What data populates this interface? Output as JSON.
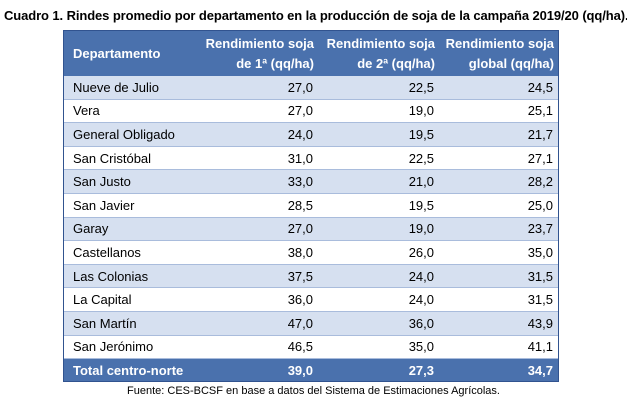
{
  "caption": "Cuadro 1. Rindes promedio por departamento en la producción de soja de la campaña 2019/20 (qq/ha).",
  "table": {
    "headers": [
      "Departamento",
      "Rendimiento soja de 1ª (qq/ha)",
      "Rendimiento soja de 2ª (qq/ha)",
      "Rendimiento soja global (qq/ha)"
    ],
    "headers_split": [
      [
        "Departamento"
      ],
      [
        "Rendimiento soja",
        "de 1ª (qq/ha)"
      ],
      [
        "Rendimiento soja",
        "de 2ª (qq/ha)"
      ],
      [
        "Rendimiento soja",
        "global (qq/ha)"
      ]
    ],
    "rows": [
      [
        "Nueve de Julio",
        "27,0",
        "22,5",
        "24,5"
      ],
      [
        "Vera",
        "27,0",
        "19,0",
        "25,1"
      ],
      [
        "General Obligado",
        "24,0",
        "19,5",
        "21,7"
      ],
      [
        "San Cristóbal",
        "31,0",
        "22,5",
        "27,1"
      ],
      [
        "San Justo",
        "33,0",
        "21,0",
        "28,2"
      ],
      [
        "San Javier",
        "28,5",
        "19,5",
        "25,0"
      ],
      [
        "Garay",
        "27,0",
        "19,0",
        "23,7"
      ],
      [
        "Castellanos",
        "38,0",
        "26,0",
        "35,0"
      ],
      [
        "Las Colonias",
        "37,5",
        "24,0",
        "31,5"
      ],
      [
        "La Capital",
        "36,0",
        "24,0",
        "31,5"
      ],
      [
        "San Martín",
        "47,0",
        "36,0",
        "43,9"
      ],
      [
        "San Jerónimo",
        "46,5",
        "35,0",
        "41,1"
      ]
    ],
    "total": [
      "Total centro-norte",
      "39,0",
      "27,3",
      "34,7"
    ]
  },
  "source": "Fuente: CES-BCSF en base a datos del Sistema de Estimaciones Agrícolas."
}
